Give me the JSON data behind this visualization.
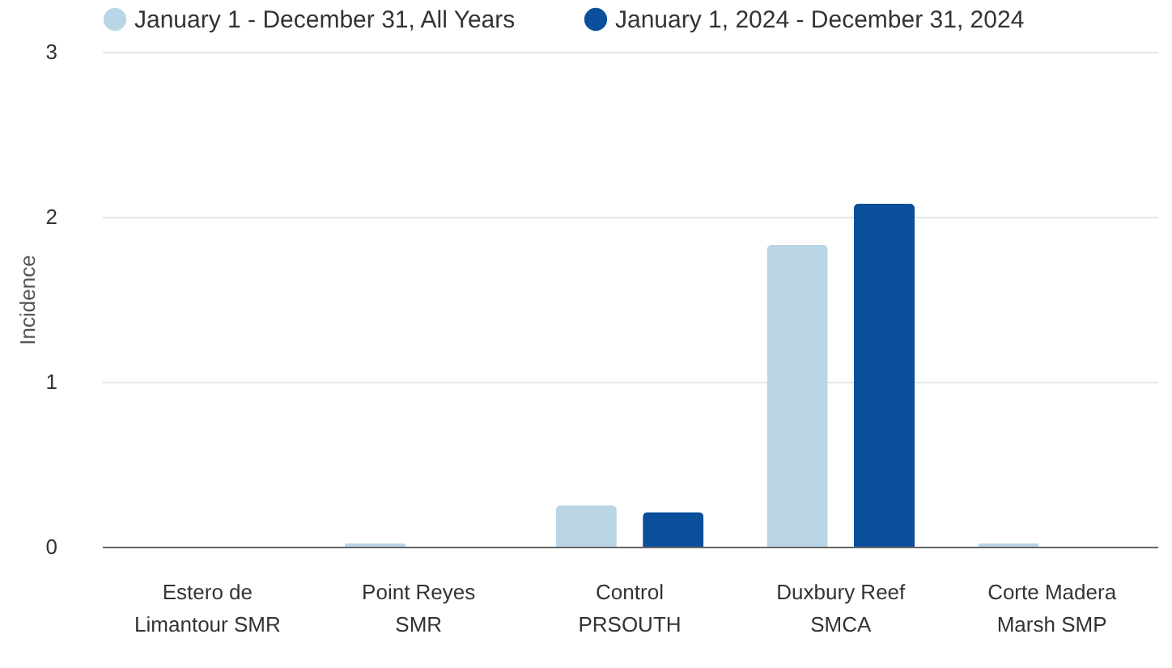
{
  "chart_data": {
    "type": "bar",
    "ylabel": "Incidence",
    "categories": [
      "Estero de\nLimantour SMR",
      "Point Reyes\nSMR",
      "Control\nPRSOUTH",
      "Duxbury Reef\nSMCA",
      "Corte Madera\nMarsh SMP"
    ],
    "series": [
      {
        "name": "January 1 - December 31, All Years",
        "color": "#bad5e5",
        "values": [
          0,
          0.02,
          0.25,
          1.83,
          0.02
        ]
      },
      {
        "name": "January 1, 2024 - December 31, 2024",
        "color": "#0b4f9c",
        "values": [
          0,
          0,
          0.21,
          2.08,
          0
        ]
      }
    ],
    "ylim": [
      0,
      3
    ],
    "yticks": [
      0,
      1,
      2,
      3
    ],
    "grid": "y",
    "legend": "top left"
  }
}
